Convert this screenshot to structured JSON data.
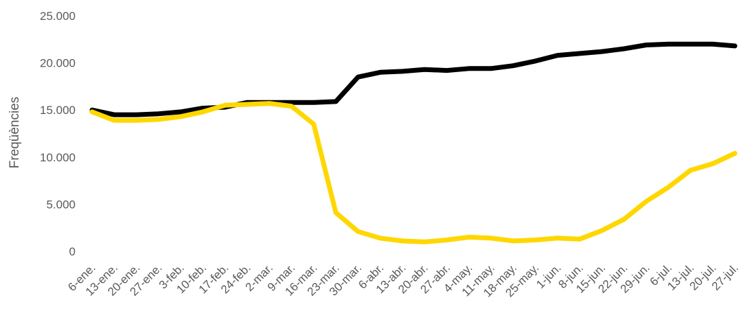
{
  "chart_data": {
    "type": "line",
    "ylabel": "Freqüències",
    "xlabel": "",
    "title": "",
    "ylim": [
      0,
      25000
    ],
    "yticks": [
      0,
      5000,
      10000,
      15000,
      20000,
      25000
    ],
    "ytick_labels": [
      "0",
      "5.000",
      "10.000",
      "15.000",
      "20.000",
      "25.000"
    ],
    "grid": false,
    "legend": "none",
    "categories": [
      "6-ene.",
      "13-ene.",
      "20-ene.",
      "27-ene.",
      "3-feb.",
      "10-feb.",
      "17-feb.",
      "24-feb.",
      "2-mar.",
      "9-mar.",
      "16-mar.",
      "23-mar.",
      "30-mar.",
      "6-abr.",
      "13-abr.",
      "20-abr.",
      "27-abr.",
      "4-may.",
      "11-may.",
      "18-may.",
      "25-may.",
      "1-jun.",
      "8-jun.",
      "15-jun.",
      "22-jun.",
      "29-jun.",
      "6-jul.",
      "13-jul.",
      "20-jul.",
      "27-jul."
    ],
    "series": [
      {
        "color": "#000000",
        "values": [
          15000,
          14500,
          14500,
          14600,
          14800,
          15200,
          15300,
          15800,
          15800,
          15800,
          15800,
          15900,
          18500,
          19000,
          19100,
          19300,
          19200,
          19400,
          19400,
          19700,
          20200,
          20800,
          21000,
          21200,
          21500,
          21900,
          22000,
          22000,
          22000,
          21800
        ]
      },
      {
        "color": "#ffd700",
        "values": [
          14800,
          13900,
          13900,
          14000,
          14300,
          14800,
          15500,
          15600,
          15700,
          15400,
          13500,
          4100,
          2100,
          1400,
          1100,
          1000,
          1200,
          1500,
          1400,
          1100,
          1200,
          1400,
          1300,
          2200,
          3400,
          5300,
          6800,
          8600,
          9300,
          10400
        ]
      }
    ]
  }
}
